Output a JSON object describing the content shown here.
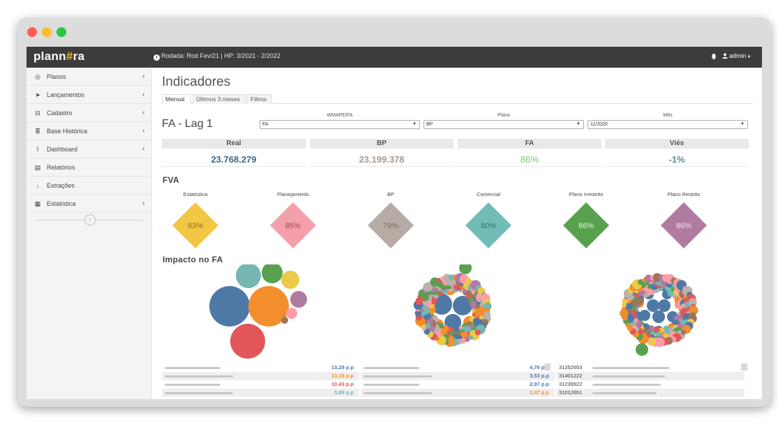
{
  "window": {
    "controls": [
      {
        "name": "close",
        "color": "#ff5f57"
      },
      {
        "name": "minimize",
        "color": "#febc2e"
      },
      {
        "name": "maximize",
        "color": "#28c840"
      }
    ]
  },
  "topbar": {
    "logo_pre": "plann",
    "logo_hash": "#",
    "logo_post": "ra",
    "rodada": "Rodada: Rod Fev/21 | HP: 3/2021 - 2/2022",
    "user": "admin"
  },
  "sidebar": {
    "items": [
      {
        "label": "Planos",
        "icon": "compass-icon",
        "chev": "‹"
      },
      {
        "label": "Lançamentos",
        "icon": "paper-plane-icon",
        "chev": "‹"
      },
      {
        "label": "Cadastro",
        "icon": "inbox-icon",
        "chev": "‹"
      },
      {
        "label": "Base Histórica",
        "icon": "database-icon",
        "chev": "‹"
      },
      {
        "label": "Dashboard",
        "icon": "line-chart-icon",
        "chev": "‹"
      },
      {
        "label": "Relatórios",
        "icon": "file-icon",
        "chev": ""
      },
      {
        "label": "Extrações",
        "icon": "arrow-down-icon",
        "chev": ""
      },
      {
        "label": "Estatística",
        "icon": "calculator-icon",
        "chev": "‹"
      }
    ],
    "collapse_glyph": "‹"
  },
  "main": {
    "title": "Indicadores",
    "tabs": [
      {
        "label": "Mensal",
        "active": true
      },
      {
        "label": "Últimos 3 meses",
        "active": false
      },
      {
        "label": "Filtros",
        "active": false
      }
    ],
    "lag_title": "FA - Lag 1",
    "filters": [
      {
        "label": "WMAPE/FA",
        "value": "FA"
      },
      {
        "label": "Plano",
        "value": "BP"
      },
      {
        "label": "Mês",
        "value": "11/2020"
      }
    ],
    "kpis": [
      {
        "label": "Real",
        "value": "23.768.279",
        "color": "#3a6a8e"
      },
      {
        "label": "BP",
        "value": "23.199.378",
        "color": "#a89a90"
      },
      {
        "label": "FA",
        "value": "86%",
        "color": "#7fbf7f"
      },
      {
        "label": "Viés",
        "value": "-1%",
        "color": "#5a8f8f"
      }
    ],
    "fva_title": "FVA",
    "fva": [
      {
        "label": "Estatística",
        "value": 83,
        "display": "83%",
        "color": "#f2c744",
        "text_color": "#8a6d1a"
      },
      {
        "label": "Planejamento",
        "value": 85,
        "display": "85%",
        "color": "#f3a0ab",
        "text_color": "#a04652"
      },
      {
        "label": "BP",
        "value": 79,
        "display": "79%",
        "color": "#b7aca5",
        "text_color": "#7a6a60"
      },
      {
        "label": "Comercial",
        "value": 80,
        "display": "80%",
        "color": "#72bcb8",
        "text_color": "#2f6e6a"
      },
      {
        "label": "Plano Irrestrito",
        "value": 86,
        "display": "86%",
        "color": "#59a14f",
        "text_color": "#e8f5e4"
      },
      {
        "label": "Plano Restrito",
        "value": 86,
        "display": "86%",
        "color": "#b07aa1",
        "text_color": "#f4e6f0"
      }
    ],
    "impacto_title": "Impacto no FA",
    "tables": [
      {
        "rows": [
          {
            "name": "",
            "value": "13,29 p.p",
            "color": "#4e79a7"
          },
          {
            "name": "",
            "value": "13,16 p.p",
            "color": "#f28e2b"
          },
          {
            "name": "",
            "value": "10,43 p.p",
            "color": "#e15759"
          },
          {
            "name": "",
            "value": "5,89 p.p",
            "color": "#76b7b2"
          }
        ]
      },
      {
        "rows": [
          {
            "name": "",
            "value": "4,76 p.p",
            "color": "#4e79a7"
          },
          {
            "name": "",
            "value": "3,53 p.p",
            "color": "#4e79a7"
          },
          {
            "name": "",
            "value": "2,97 p.p",
            "color": "#4e79a7"
          },
          {
            "name": "",
            "value": "2,47 p.p",
            "color": "#f28e2b"
          }
        ]
      },
      {
        "rows": [
          {
            "name": "31252653",
            "value": "",
            "color": "#333"
          },
          {
            "name": "31401222",
            "value": "",
            "color": "#333"
          },
          {
            "name": "31239922",
            "value": "",
            "color": "#333"
          },
          {
            "name": "31012651",
            "value": "",
            "color": "#333"
          }
        ]
      }
    ]
  }
}
